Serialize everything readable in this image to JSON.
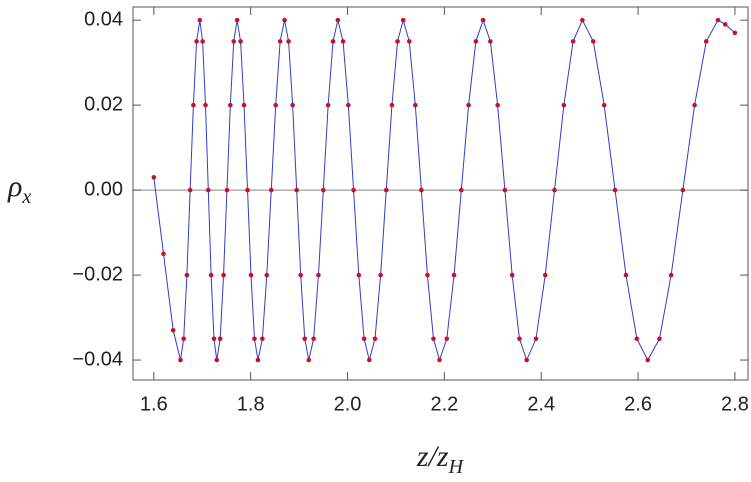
{
  "chart_data": {
    "type": "line",
    "x_label": [
      "z/z",
      "H"
    ],
    "y_label": [
      "ρ",
      "x"
    ],
    "xlim": [
      1.557,
      2.827
    ],
    "ylim": [
      -0.0447,
      0.0431
    ],
    "xticks": [
      1.6,
      1.8,
      {
        "value": 2,
        "label": "2.0"
      },
      2.2,
      2.4,
      2.6,
      2.8
    ],
    "yticks": [
      {
        "value": -0.04,
        "label": "−0.04"
      },
      {
        "value": -0.02,
        "label": "−0.02"
      },
      {
        "value": 0,
        "label": "0.00"
      },
      0.02,
      0.04
    ],
    "series": [
      {
        "line_color": "#2b3fc9",
        "marker_color": "#c8102e",
        "x": [
          1.6,
          1.62,
          1.64,
          1.655,
          1.6617,
          1.6683,
          1.675,
          1.6817,
          1.6883,
          1.695,
          1.7008,
          1.7067,
          1.7125,
          1.7183,
          1.7242,
          1.73,
          1.737,
          1.744,
          1.751,
          1.758,
          1.765,
          1.772,
          1.7792,
          1.7863,
          1.7935,
          1.8007,
          1.8078,
          1.815,
          1.8242,
          1.8333,
          1.8425,
          1.8517,
          1.8608,
          1.87,
          1.8783,
          1.8867,
          1.895,
          1.9033,
          1.9117,
          1.92,
          1.93,
          1.94,
          1.95,
          1.96,
          1.97,
          1.98,
          1.9908,
          2.0017,
          2.0125,
          2.0233,
          2.0342,
          2.045,
          2.0567,
          2.0683,
          2.08,
          2.0917,
          2.1033,
          2.115,
          2.1275,
          2.14,
          2.1525,
          2.165,
          2.1775,
          2.19,
          2.205,
          2.22,
          2.235,
          2.25,
          2.265,
          2.28,
          2.295,
          2.31,
          2.325,
          2.34,
          2.355,
          2.37,
          2.3892,
          2.4083,
          2.4275,
          2.4467,
          2.4658,
          2.485,
          2.5075,
          2.53,
          2.5525,
          2.575,
          2.5975,
          2.62,
          2.6442,
          2.6683,
          2.6925,
          2.7167,
          2.7408,
          2.765,
          2.78,
          2.8
        ],
        "values": [
          0.003,
          -0.015,
          -0.033,
          -0.04,
          -0.035,
          -0.02,
          0,
          0.02,
          0.035,
          0.04,
          0.035,
          0.02,
          0,
          -0.02,
          -0.035,
          -0.04,
          -0.035,
          -0.02,
          0,
          0.02,
          0.035,
          0.04,
          0.035,
          0.02,
          0,
          -0.02,
          -0.035,
          -0.04,
          -0.035,
          -0.02,
          0,
          0.02,
          0.035,
          0.04,
          0.035,
          0.02,
          0,
          -0.02,
          -0.035,
          -0.04,
          -0.035,
          -0.02,
          0,
          0.02,
          0.035,
          0.04,
          0.035,
          0.02,
          0,
          -0.02,
          -0.035,
          -0.04,
          -0.035,
          -0.02,
          0,
          0.02,
          0.035,
          0.04,
          0.035,
          0.02,
          0,
          -0.02,
          -0.035,
          -0.04,
          -0.035,
          -0.02,
          0,
          0.02,
          0.035,
          0.04,
          0.035,
          0.02,
          0,
          -0.02,
          -0.035,
          -0.04,
          -0.035,
          -0.02,
          0,
          0.02,
          0.035,
          0.04,
          0.035,
          0.02,
          0,
          -0.02,
          -0.035,
          -0.04,
          -0.035,
          -0.02,
          0,
          0.02,
          0.035,
          0.04,
          0.039,
          0.037
        ]
      }
    ]
  }
}
